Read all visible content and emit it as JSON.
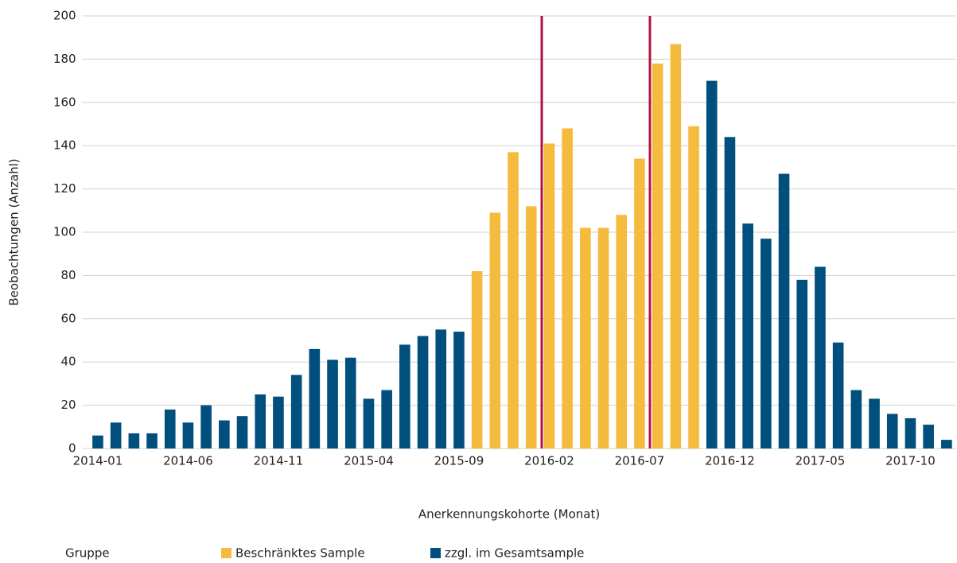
{
  "chart_data": {
    "type": "bar",
    "x_label": "Anerkennungskohorte (Monat)",
    "y_label": "Beobachtungen (Anzahl)",
    "legend_title": "Gruppe",
    "categories": [
      "2014-01",
      null,
      null,
      null,
      null,
      "2014-06",
      null,
      null,
      null,
      null,
      "2014-11",
      null,
      null,
      null,
      null,
      "2015-04",
      null,
      null,
      null,
      null,
      "2015-09",
      null,
      null,
      null,
      null,
      "2016-02",
      null,
      null,
      null,
      null,
      "2016-07",
      null,
      null,
      null,
      null,
      "2016-12",
      null,
      null,
      null,
      null,
      "2017-05",
      null,
      null,
      null,
      null,
      "2017-10",
      null,
      null
    ],
    "series": [
      {
        "name": "Beschränktes Sample",
        "color": "#f5bb3e",
        "values": [
          null,
          null,
          null,
          null,
          null,
          null,
          null,
          null,
          null,
          null,
          null,
          null,
          null,
          null,
          null,
          null,
          null,
          null,
          null,
          null,
          null,
          82,
          109,
          137,
          112,
          141,
          148,
          102,
          102,
          108,
          134,
          178,
          187,
          149,
          null,
          null,
          null,
          null,
          null,
          null,
          null,
          null,
          null,
          null,
          null,
          null,
          null,
          null
        ]
      },
      {
        "name": "zzgl. im Gesamtsample",
        "color": "#004f7c",
        "values": [
          6,
          12,
          7,
          7,
          18,
          12,
          20,
          13,
          15,
          25,
          24,
          34,
          46,
          41,
          42,
          23,
          27,
          48,
          52,
          55,
          54,
          null,
          null,
          null,
          null,
          null,
          null,
          null,
          null,
          null,
          null,
          null,
          null,
          null,
          170,
          144,
          104,
          97,
          127,
          78,
          84,
          49,
          27,
          23,
          16,
          14,
          11,
          4
        ]
      }
    ],
    "ylim": [
      0,
      200
    ],
    "yticks": [
      0,
      20,
      40,
      60,
      80,
      100,
      120,
      140,
      160,
      180,
      200
    ],
    "grid": true
  }
}
